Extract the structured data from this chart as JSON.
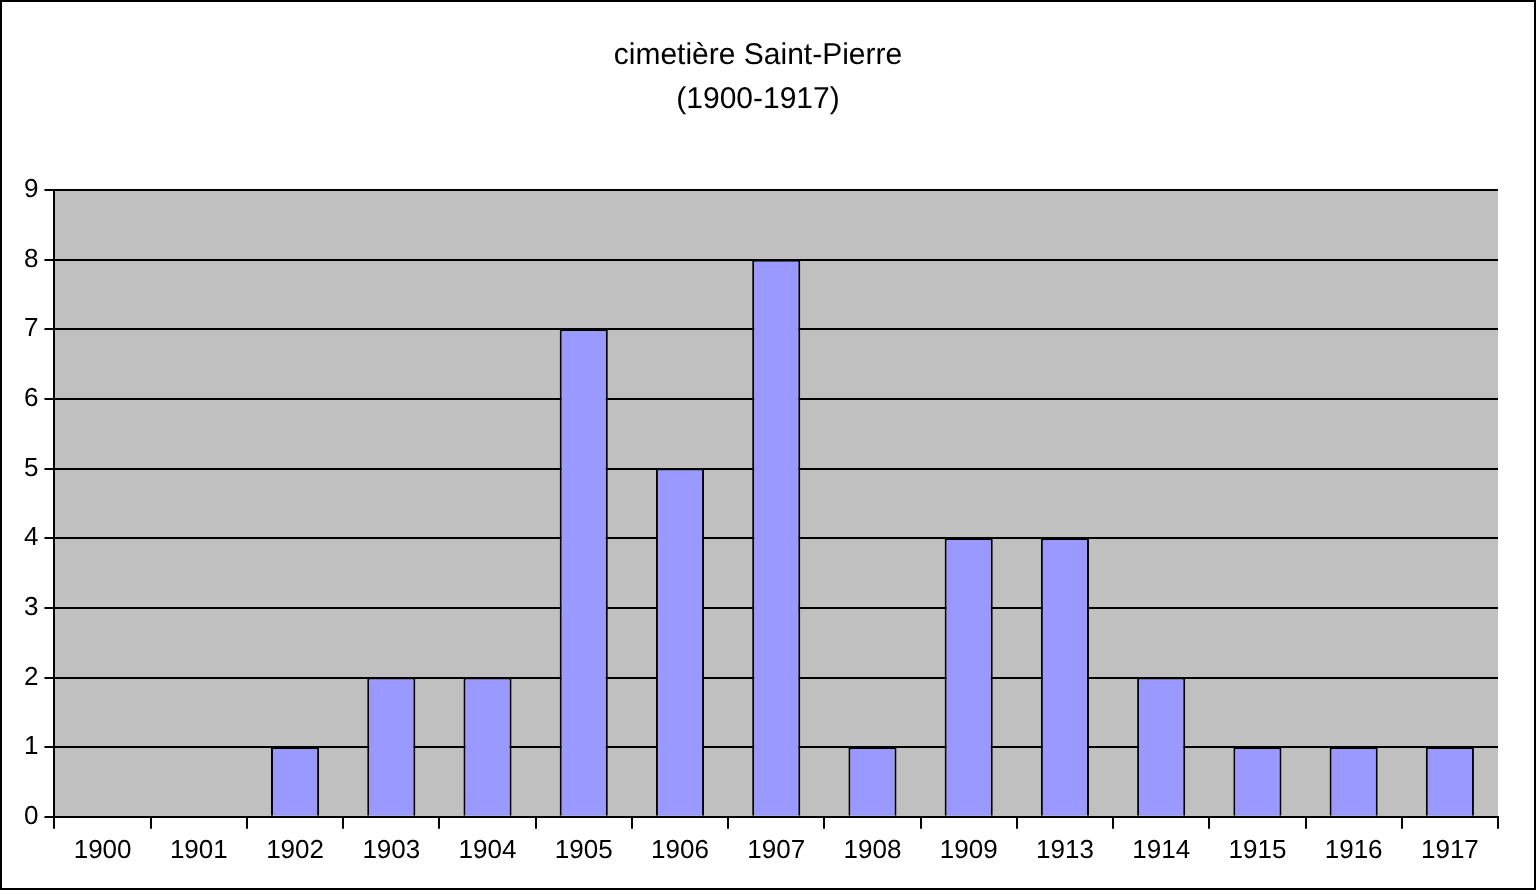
{
  "chart_data": {
    "type": "bar",
    "title": "cimetière Saint-Pierre",
    "subtitle": "(1900-1917)",
    "categories": [
      "1900",
      "1901",
      "1902",
      "1903",
      "1904",
      "1905",
      "1906",
      "1907",
      "1908",
      "1909",
      "1913",
      "1914",
      "1915",
      "1916",
      "1917"
    ],
    "values": [
      0,
      0,
      1,
      2,
      2,
      7,
      5,
      8,
      1,
      4,
      4,
      2,
      1,
      1,
      1
    ],
    "color": "#9999ff",
    "ylim": [
      0,
      9
    ],
    "yticks": [
      0,
      1,
      2,
      3,
      4,
      5,
      6,
      7,
      8,
      9
    ],
    "grid": "y"
  }
}
